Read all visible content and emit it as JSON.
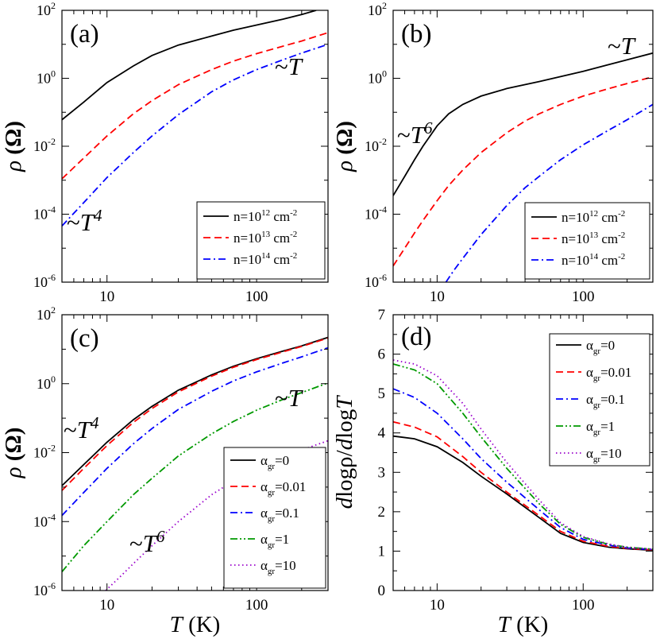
{
  "chart_data": [
    {
      "panel": "(a)",
      "type": "line",
      "ylabel": "ρ (Ω)",
      "xlabel": "",
      "xscale": "log",
      "yscale": "log",
      "xlim": [
        5,
        300
      ],
      "ylim": [
        1e-06,
        100
      ],
      "xticks": [
        10,
        100
      ],
      "yticks": [
        1e-06,
        0.0001,
        0.01,
        1,
        100
      ],
      "legend": "bottom-right",
      "annotations": [
        {
          "text": "~T",
          "exp": ""
        },
        {
          "text": "~T",
          "exp": "4"
        }
      ],
      "series": [
        {
          "name": "n=10^12 cm^-2",
          "label_base": "n=10",
          "label_exp": "12",
          "label_unit": " cm",
          "label_unit_exp": "-2",
          "color": "#000000",
          "dash": "solid",
          "x": [
            5,
            7,
            10,
            15,
            20,
            30,
            50,
            70,
            100,
            150,
            200,
            250
          ],
          "y": [
            0.06,
            0.2,
            0.75,
            2.3,
            4.7,
            9.5,
            17.5,
            26,
            37,
            55,
            75,
            100
          ]
        },
        {
          "name": "n=10^13 cm^-2",
          "label_base": "n=10",
          "label_exp": "13",
          "label_unit": " cm",
          "label_unit_exp": "-2",
          "color": "#ff0000",
          "dash": "dashed",
          "x": [
            5,
            7,
            10,
            15,
            20,
            30,
            50,
            70,
            100,
            150,
            200,
            300
          ],
          "y": [
            0.0011,
            0.0045,
            0.02,
            0.09,
            0.22,
            0.65,
            1.8,
            3.2,
            5.3,
            8.8,
            12.5,
            22
          ]
        },
        {
          "name": "n=10^14 cm^-2",
          "label_base": "n=10",
          "label_exp": "14",
          "label_unit": " cm",
          "label_unit_exp": "-2",
          "color": "#0000ff",
          "dash": "dashdot",
          "x": [
            5,
            7,
            10,
            15,
            20,
            30,
            50,
            70,
            100,
            150,
            200,
            300
          ],
          "y": [
            4.5e-05,
            0.00022,
            0.0012,
            0.0065,
            0.02,
            0.085,
            0.4,
            0.9,
            1.8,
            3.5,
            5.5,
            10
          ]
        }
      ]
    },
    {
      "panel": "(b)",
      "type": "line",
      "ylabel": "ρ (Ω)",
      "xlabel": "",
      "xscale": "log",
      "yscale": "log",
      "xlim": [
        5,
        300
      ],
      "ylim": [
        1e-06,
        100
      ],
      "xticks": [
        10,
        100
      ],
      "yticks": [
        1e-06,
        0.0001,
        0.01,
        1,
        100
      ],
      "legend": "bottom-right",
      "annotations": [
        {
          "text": "~T",
          "exp": ""
        },
        {
          "text": "~T",
          "exp": "6"
        }
      ],
      "series": [
        {
          "name": "n=10^12 cm^-2",
          "label_base": "n=10",
          "label_exp": "12",
          "label_unit": " cm",
          "label_unit_exp": "-2",
          "color": "#000000",
          "dash": "solid",
          "x": [
            5,
            6,
            7,
            8,
            10,
            12,
            15,
            20,
            30,
            50,
            100,
            200,
            300
          ],
          "y": [
            0.00035,
            0.0013,
            0.004,
            0.01,
            0.04,
            0.09,
            0.17,
            0.3,
            0.5,
            0.8,
            1.6,
            3.5,
            5.5
          ]
        },
        {
          "name": "n=10^13 cm^-2",
          "label_base": "n=10",
          "label_exp": "13",
          "label_unit": " cm",
          "label_unit_exp": "-2",
          "color": "#ff0000",
          "dash": "dashed",
          "x": [
            5,
            6,
            7,
            8,
            10,
            12,
            15,
            20,
            30,
            40,
            50,
            70,
            100,
            150,
            200,
            300
          ],
          "y": [
            3e-06,
            1e-05,
            2.8e-05,
            6.5e-05,
            0.00025,
            0.0007,
            0.002,
            0.0065,
            0.025,
            0.055,
            0.09,
            0.17,
            0.3,
            0.5,
            0.7,
            1.1
          ]
        },
        {
          "name": "n=10^14 cm^-2",
          "label_base": "n=10",
          "label_exp": "14",
          "label_unit": " cm",
          "label_unit_exp": "-2",
          "color": "#0000ff",
          "dash": "dashdot",
          "x": [
            11.5,
            13,
            15,
            20,
            30,
            40,
            50,
            70,
            100,
            150,
            200,
            300
          ],
          "y": [
            1e-06,
            2.2e-06,
            5e-06,
            2.5e-05,
            0.00018,
            0.0006,
            0.0013,
            0.004,
            0.011,
            0.03,
            0.06,
            0.17
          ]
        }
      ]
    },
    {
      "panel": "(c)",
      "type": "line",
      "ylabel": "ρ (Ω)",
      "xlabel": "T (K)",
      "xscale": "log",
      "yscale": "log",
      "xlim": [
        5,
        300
      ],
      "ylim": [
        1e-06,
        100
      ],
      "xticks": [
        10,
        100
      ],
      "yticks": [
        1e-06,
        0.0001,
        0.01,
        1,
        100
      ],
      "legend": "bottom-right",
      "annotations": [
        {
          "text": "~T",
          "exp": "4"
        },
        {
          "text": "~T",
          "exp": ""
        },
        {
          "text": "~T",
          "exp": "6"
        }
      ],
      "series": [
        {
          "name": "α_gr=0",
          "label_base": "α",
          "label_sub": "gr",
          "label_rest": "=0",
          "color": "#000000",
          "dash": "solid",
          "x": [
            5,
            7,
            10,
            15,
            20,
            30,
            50,
            70,
            100,
            150,
            200,
            300
          ],
          "y": [
            0.0011,
            0.0045,
            0.02,
            0.09,
            0.22,
            0.65,
            1.8,
            3.2,
            5.3,
            8.8,
            12.5,
            22
          ]
        },
        {
          "name": "α_gr=0.01",
          "label_base": "α",
          "label_sub": "gr",
          "label_rest": "=0.01",
          "color": "#ff0000",
          "dash": "dashed",
          "x": [
            5,
            7,
            10,
            15,
            20,
            30,
            50,
            70,
            100,
            150,
            200,
            300
          ],
          "y": [
            0.0008,
            0.0035,
            0.016,
            0.075,
            0.19,
            0.58,
            1.65,
            3.0,
            5.0,
            8.4,
            12,
            21
          ]
        },
        {
          "name": "α_gr=0.1",
          "label_base": "α",
          "label_sub": "gr",
          "label_rest": "=0.1",
          "color": "#0000ff",
          "dash": "dashdot",
          "x": [
            5,
            7,
            10,
            15,
            20,
            30,
            50,
            70,
            100,
            150,
            200,
            300
          ],
          "y": [
            0.00015,
            0.0007,
            0.0035,
            0.018,
            0.05,
            0.18,
            0.6,
            1.2,
            2.2,
            4.0,
            6.0,
            11
          ]
        },
        {
          "name": "α_gr=1",
          "label_base": "α",
          "label_sub": "gr",
          "label_rest": "=1",
          "color": "#009900",
          "dash": "dashdotdot",
          "x": [
            5,
            7,
            10,
            15,
            20,
            30,
            50,
            70,
            100,
            150,
            200,
            300
          ],
          "y": [
            3.5e-06,
            2e-05,
            0.0001,
            0.0006,
            0.0018,
            0.008,
            0.035,
            0.08,
            0.17,
            0.35,
            0.55,
            1.05
          ]
        },
        {
          "name": "α_gr=10",
          "label_base": "α",
          "label_sub": "gr",
          "label_rest": "=10",
          "color": "#9900cc",
          "dash": "dotted",
          "x": [
            9.8,
            12,
            15,
            20,
            30,
            50,
            70,
            100,
            150,
            200,
            300
          ],
          "y": [
            1e-06,
            2.3e-06,
            6e-06,
            2e-05,
            0.0001,
            0.0006,
            0.0015,
            0.0035,
            0.0075,
            0.012,
            0.022
          ]
        }
      ]
    },
    {
      "panel": "(d)",
      "type": "line",
      "ylabel": "dlogρ/dlogT",
      "xlabel": "T (K)",
      "xscale": "log",
      "yscale": "linear",
      "xlim": [
        5,
        300
      ],
      "ylim": [
        0,
        7
      ],
      "xticks": [
        10,
        100
      ],
      "yticks": [
        0,
        1,
        2,
        3,
        4,
        5,
        6,
        7
      ],
      "legend": "top-right",
      "series": [
        {
          "name": "α_gr=0",
          "label_base": "α",
          "label_sub": "gr",
          "label_rest": "=0",
          "color": "#000000",
          "dash": "solid",
          "x": [
            5,
            7,
            10,
            15,
            20,
            30,
            50,
            70,
            100,
            150,
            200,
            300
          ],
          "y": [
            3.92,
            3.85,
            3.65,
            3.25,
            2.9,
            2.45,
            1.85,
            1.45,
            1.22,
            1.1,
            1.06,
            1.02
          ]
        },
        {
          "name": "α_gr=0.01",
          "label_base": "α",
          "label_sub": "gr",
          "label_rest": "=0.01",
          "color": "#ff0000",
          "dash": "dashed",
          "x": [
            5,
            7,
            10,
            15,
            20,
            30,
            50,
            70,
            100,
            150,
            200,
            300
          ],
          "y": [
            4.28,
            4.15,
            3.9,
            3.4,
            3.0,
            2.5,
            1.9,
            1.5,
            1.25,
            1.12,
            1.07,
            1.03
          ]
        },
        {
          "name": "α_gr=0.1",
          "label_base": "α",
          "label_sub": "gr",
          "label_rest": "=0.1",
          "color": "#0000ff",
          "dash": "dashdot",
          "x": [
            5,
            7,
            10,
            15,
            20,
            30,
            50,
            70,
            100,
            150,
            200,
            300
          ],
          "y": [
            5.12,
            4.9,
            4.5,
            3.85,
            3.35,
            2.75,
            2.05,
            1.6,
            1.3,
            1.15,
            1.08,
            1.04
          ]
        },
        {
          "name": "α_gr=1",
          "label_base": "α",
          "label_sub": "gr",
          "label_rest": "=1",
          "color": "#009900",
          "dash": "dashdotdot",
          "x": [
            5,
            7,
            10,
            15,
            20,
            30,
            50,
            70,
            100,
            150,
            200,
            300
          ],
          "y": [
            5.75,
            5.6,
            5.25,
            4.5,
            3.9,
            3.1,
            2.2,
            1.68,
            1.35,
            1.17,
            1.1,
            1.05
          ]
        },
        {
          "name": "α_gr=10",
          "label_base": "α",
          "label_sub": "gr",
          "label_rest": "=10",
          "color": "#9900cc",
          "dash": "dotted",
          "x": [
            5,
            7,
            10,
            15,
            20,
            30,
            50,
            70,
            100,
            150,
            200,
            300
          ],
          "y": [
            5.85,
            5.75,
            5.45,
            4.75,
            4.1,
            3.25,
            2.3,
            1.72,
            1.37,
            1.18,
            1.1,
            1.05
          ]
        }
      ]
    }
  ]
}
